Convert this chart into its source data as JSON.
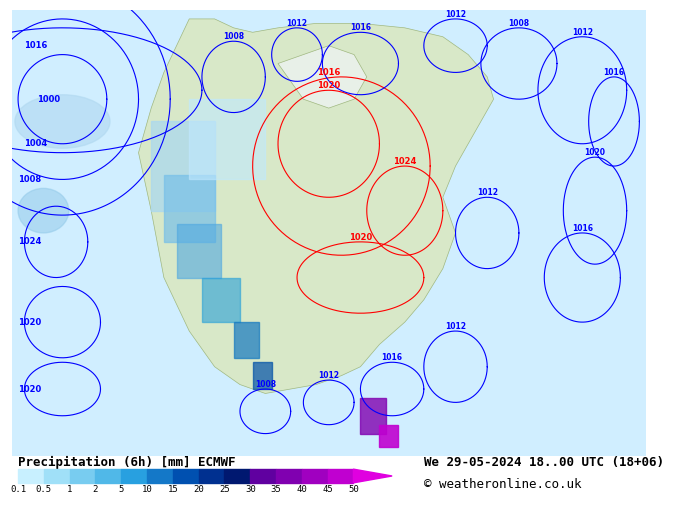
{
  "title_left": "Precipitation (6h) [mm] ECMWF",
  "title_right": "We 29-05-2024 18..00 UTC (18+06)",
  "copyright": "© weatheronline.co.uk",
  "colorbar_values": [
    0.1,
    0.5,
    1,
    2,
    5,
    10,
    15,
    20,
    25,
    30,
    35,
    40,
    45,
    50
  ],
  "colorbar_colors": [
    "#c8f0ff",
    "#a0e0f8",
    "#78ccf0",
    "#50b8e8",
    "#28a0e0",
    "#1478c8",
    "#0050b0",
    "#003090",
    "#001870",
    "#6000a0",
    "#8000b0",
    "#a000c0",
    "#c000d0",
    "#e000e0"
  ],
  "bg_color": "#ffffff",
  "map_bg": "#e8f4ff",
  "label_fontsize": 9,
  "title_fontsize": 9,
  "copyright_fontsize": 9
}
